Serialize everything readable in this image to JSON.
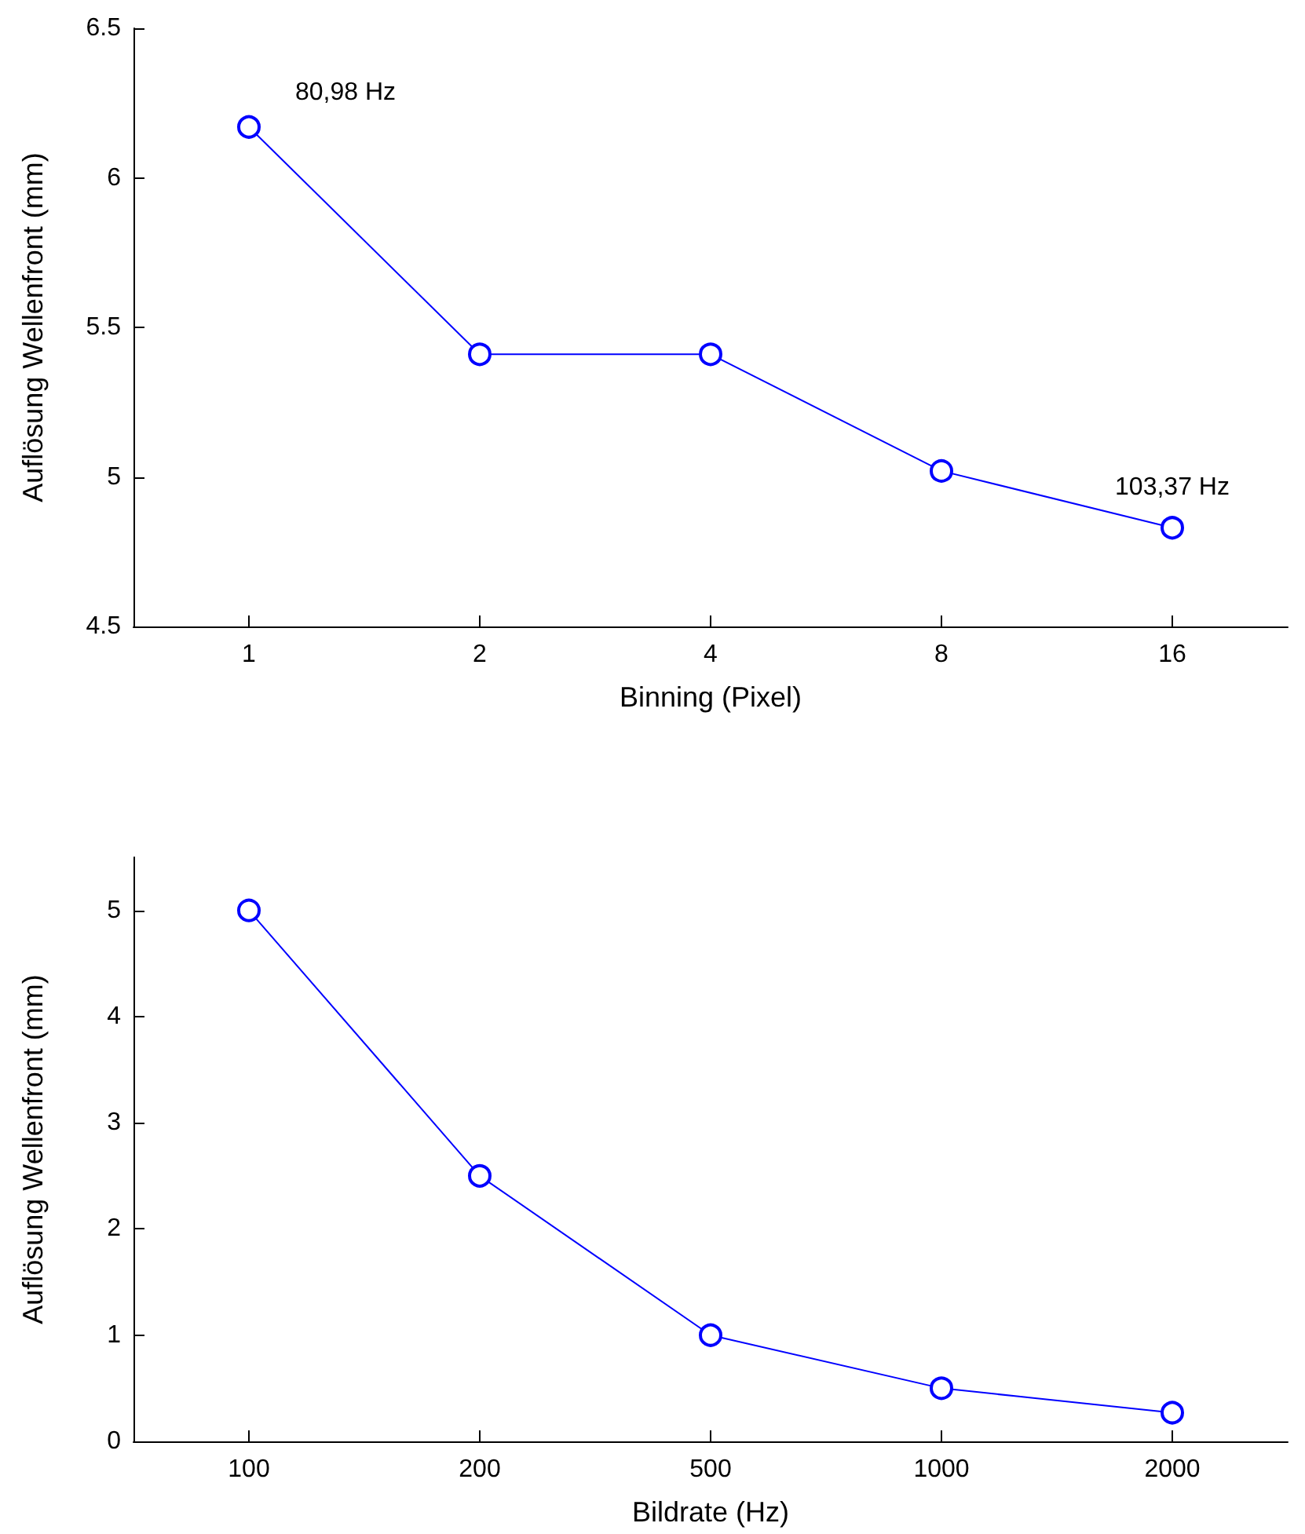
{
  "chart_data": [
    {
      "type": "line",
      "xlabel": "Binning (Pixel)",
      "ylabel": "Auflösung Wellenfront (mm)",
      "categories": [
        "1",
        "2",
        "4",
        "8",
        "16"
      ],
      "series": [
        {
          "color": "#0000ff",
          "values": [
            6.17,
            5.41,
            5.41,
            5.02,
            4.83
          ]
        }
      ],
      "ylim": [
        4.5,
        6.5
      ],
      "yticks": [
        4.5,
        5,
        5.5,
        6,
        6.5
      ],
      "marker": "circle",
      "line_style": "solid",
      "grid": false,
      "annotations": [
        {
          "text": "80,98 Hz",
          "x": "1",
          "y": 6.17
        },
        {
          "text": "103,37 Hz",
          "x": "16",
          "y": 4.83
        }
      ]
    },
    {
      "type": "line",
      "xlabel": "Bildrate (Hz)",
      "ylabel": "Auflösung Wellenfront (mm)",
      "categories": [
        "100",
        "200",
        "500",
        "1000",
        "2000"
      ],
      "series": [
        {
          "color": "#0000ff",
          "values": [
            5.0,
            2.5,
            1.0,
            0.5,
            0.27
          ]
        }
      ],
      "ylim": [
        0,
        5.5
      ],
      "yticks": [
        0,
        1,
        2,
        3,
        4,
        5
      ],
      "marker": "circle",
      "line_style": "solid",
      "grid": false
    }
  ]
}
